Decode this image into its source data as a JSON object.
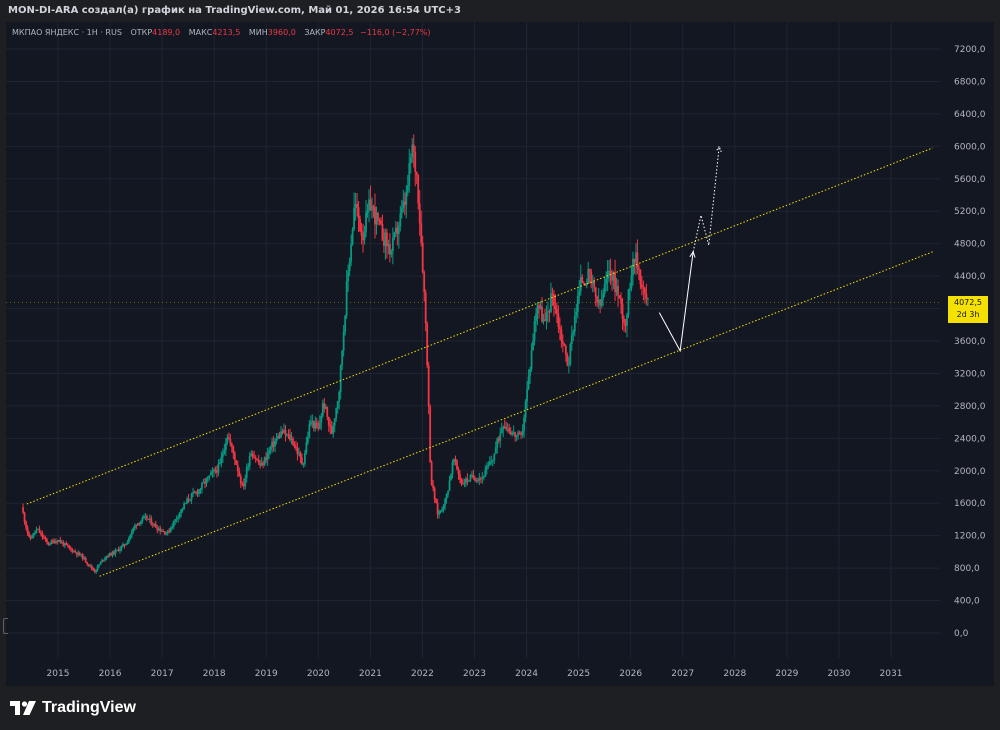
{
  "header": {
    "attribution": "MON-DI-ARA создал(а) график на TradingView.com, Май 01, 2026 16:54 UTC+3"
  },
  "legend": {
    "symbol": "МКПАО ЯНДЕКС · 1Н · RUS",
    "open_label": "ОТКР",
    "open": "4189,0",
    "high_label": "МАКС",
    "high": "4213,5",
    "low_label": "МИН",
    "low": "3960,0",
    "close_label": "ЗАКР",
    "close": "4072,5",
    "change": "−116,0 (−2,77%)"
  },
  "price_label": {
    "price": "4072,5",
    "countdown": "2d 3h"
  },
  "footer": {
    "brand": "TradingView"
  },
  "colors": {
    "background": "#131722",
    "frame": "#1e1f22",
    "up": "#089981",
    "down": "#f23645",
    "channel": "#f5e100",
    "grid": "#1f2433",
    "axis_text": "#b2b5be",
    "projection": "#ffffff"
  },
  "chart_data": {
    "type": "candlestick",
    "title": "",
    "xlabel": "",
    "ylabel": "",
    "ylim": [
      -100,
      7400
    ],
    "xlim": [
      2014.2,
      2032.0
    ],
    "grid": true,
    "y_ticks": [
      {
        "value": 0,
        "label": "0,0"
      },
      {
        "value": 400,
        "label": "400,0"
      },
      {
        "value": 800,
        "label": "800,0"
      },
      {
        "value": 1200,
        "label": "1200,0"
      },
      {
        "value": 1600,
        "label": "1600,0"
      },
      {
        "value": 2000,
        "label": "2000,0"
      },
      {
        "value": 2400,
        "label": "2400,0"
      },
      {
        "value": 2800,
        "label": "2800,0"
      },
      {
        "value": 3200,
        "label": "3200,0"
      },
      {
        "value": 3600,
        "label": "3600,0"
      },
      {
        "value": 4000,
        "label": "4000,0"
      },
      {
        "value": 4400,
        "label": "4400,0"
      },
      {
        "value": 4800,
        "label": "4800,0"
      },
      {
        "value": 5200,
        "label": "5200,0"
      },
      {
        "value": 5600,
        "label": "5600,0"
      },
      {
        "value": 6000,
        "label": "6000,0"
      },
      {
        "value": 6400,
        "label": "6400,0"
      },
      {
        "value": 6800,
        "label": "6800,0"
      },
      {
        "value": 7200,
        "label": "7200,0"
      }
    ],
    "x_ticks": [
      {
        "value": 2015,
        "label": "2015"
      },
      {
        "value": 2016,
        "label": "2016"
      },
      {
        "value": 2017,
        "label": "2017"
      },
      {
        "value": 2018,
        "label": "2018"
      },
      {
        "value": 2019,
        "label": "2019"
      },
      {
        "value": 2020,
        "label": "2020"
      },
      {
        "value": 2021,
        "label": "2021"
      },
      {
        "value": 2022,
        "label": "2022"
      },
      {
        "value": 2023,
        "label": "2023"
      },
      {
        "value": 2024,
        "label": "2024"
      },
      {
        "value": 2025,
        "label": "2025"
      },
      {
        "value": 2026,
        "label": "2026"
      },
      {
        "value": 2027,
        "label": "2027"
      },
      {
        "value": 2028,
        "label": "2028"
      },
      {
        "value": 2029,
        "label": "2029"
      },
      {
        "value": 2030,
        "label": "2030"
      },
      {
        "value": 2031,
        "label": "2031"
      }
    ],
    "price_path": [
      [
        2014.3,
        1550
      ],
      [
        2014.45,
        1150
      ],
      [
        2014.6,
        1280
      ],
      [
        2014.8,
        1100
      ],
      [
        2015.0,
        1150
      ],
      [
        2015.2,
        1050
      ],
      [
        2015.45,
        950
      ],
      [
        2015.7,
        760
      ],
      [
        2015.9,
        940
      ],
      [
        2016.1,
        1000
      ],
      [
        2016.3,
        1100
      ],
      [
        2016.5,
        1350
      ],
      [
        2016.7,
        1420
      ],
      [
        2016.9,
        1300
      ],
      [
        2017.1,
        1230
      ],
      [
        2017.3,
        1450
      ],
      [
        2017.5,
        1650
      ],
      [
        2017.7,
        1760
      ],
      [
        2017.9,
        1920
      ],
      [
        2018.1,
        2050
      ],
      [
        2018.25,
        2450
      ],
      [
        2018.4,
        2150
      ],
      [
        2018.55,
        1780
      ],
      [
        2018.7,
        2250
      ],
      [
        2018.9,
        2050
      ],
      [
        2019.1,
        2300
      ],
      [
        2019.3,
        2480
      ],
      [
        2019.5,
        2380
      ],
      [
        2019.7,
        2080
      ],
      [
        2019.85,
        2620
      ],
      [
        2020.0,
        2500
      ],
      [
        2020.1,
        2850
      ],
      [
        2020.25,
        2450
      ],
      [
        2020.4,
        3000
      ],
      [
        2020.55,
        4300
      ],
      [
        2020.7,
        5300
      ],
      [
        2020.85,
        4900
      ],
      [
        2021.0,
        5300
      ],
      [
        2021.2,
        4950
      ],
      [
        2021.4,
        4700
      ],
      [
        2021.55,
        5050
      ],
      [
        2021.7,
        5400
      ],
      [
        2021.8,
        6000
      ],
      [
        2021.9,
        5600
      ],
      [
        2022.0,
        4600
      ],
      [
        2022.08,
        3600
      ],
      [
        2022.16,
        1900
      ],
      [
        2022.3,
        1450
      ],
      [
        2022.45,
        1650
      ],
      [
        2022.6,
        2150
      ],
      [
        2022.75,
        1850
      ],
      [
        2022.95,
        1920
      ],
      [
        2023.15,
        1920
      ],
      [
        2023.35,
        2150
      ],
      [
        2023.55,
        2600
      ],
      [
        2023.75,
        2450
      ],
      [
        2023.9,
        2400
      ],
      [
        2024.05,
        3200
      ],
      [
        2024.2,
        4100
      ],
      [
        2024.35,
        3800
      ],
      [
        2024.5,
        4200
      ],
      [
        2024.65,
        3700
      ],
      [
        2024.8,
        3300
      ],
      [
        2024.92,
        3900
      ],
      [
        2025.05,
        4350
      ],
      [
        2025.2,
        4400
      ],
      [
        2025.4,
        4000
      ],
      [
        2025.6,
        4500
      ],
      [
        2025.75,
        4200
      ],
      [
        2025.9,
        3800
      ],
      [
        2026.05,
        4700
      ],
      [
        2026.15,
        4500
      ],
      [
        2026.25,
        4200
      ],
      [
        2026.33,
        4072.5
      ]
    ],
    "channel_lines": [
      {
        "name": "upper",
        "from": [
          2014.4,
          1590
        ],
        "to": [
          2031.8,
          5980
        ]
      },
      {
        "name": "lower",
        "from": [
          2015.8,
          700
        ],
        "to": [
          2031.8,
          4700
        ]
      }
    ],
    "projection": {
      "solid": [
        [
          2026.55,
          3950
        ],
        [
          2026.95,
          3480
        ],
        [
          2027.2,
          4700
        ]
      ],
      "dotted": [
        [
          2027.2,
          4700
        ],
        [
          2027.35,
          5150
        ],
        [
          2027.5,
          4780
        ],
        [
          2027.7,
          6000
        ]
      ]
    },
    "last_price": 4072.5
  }
}
